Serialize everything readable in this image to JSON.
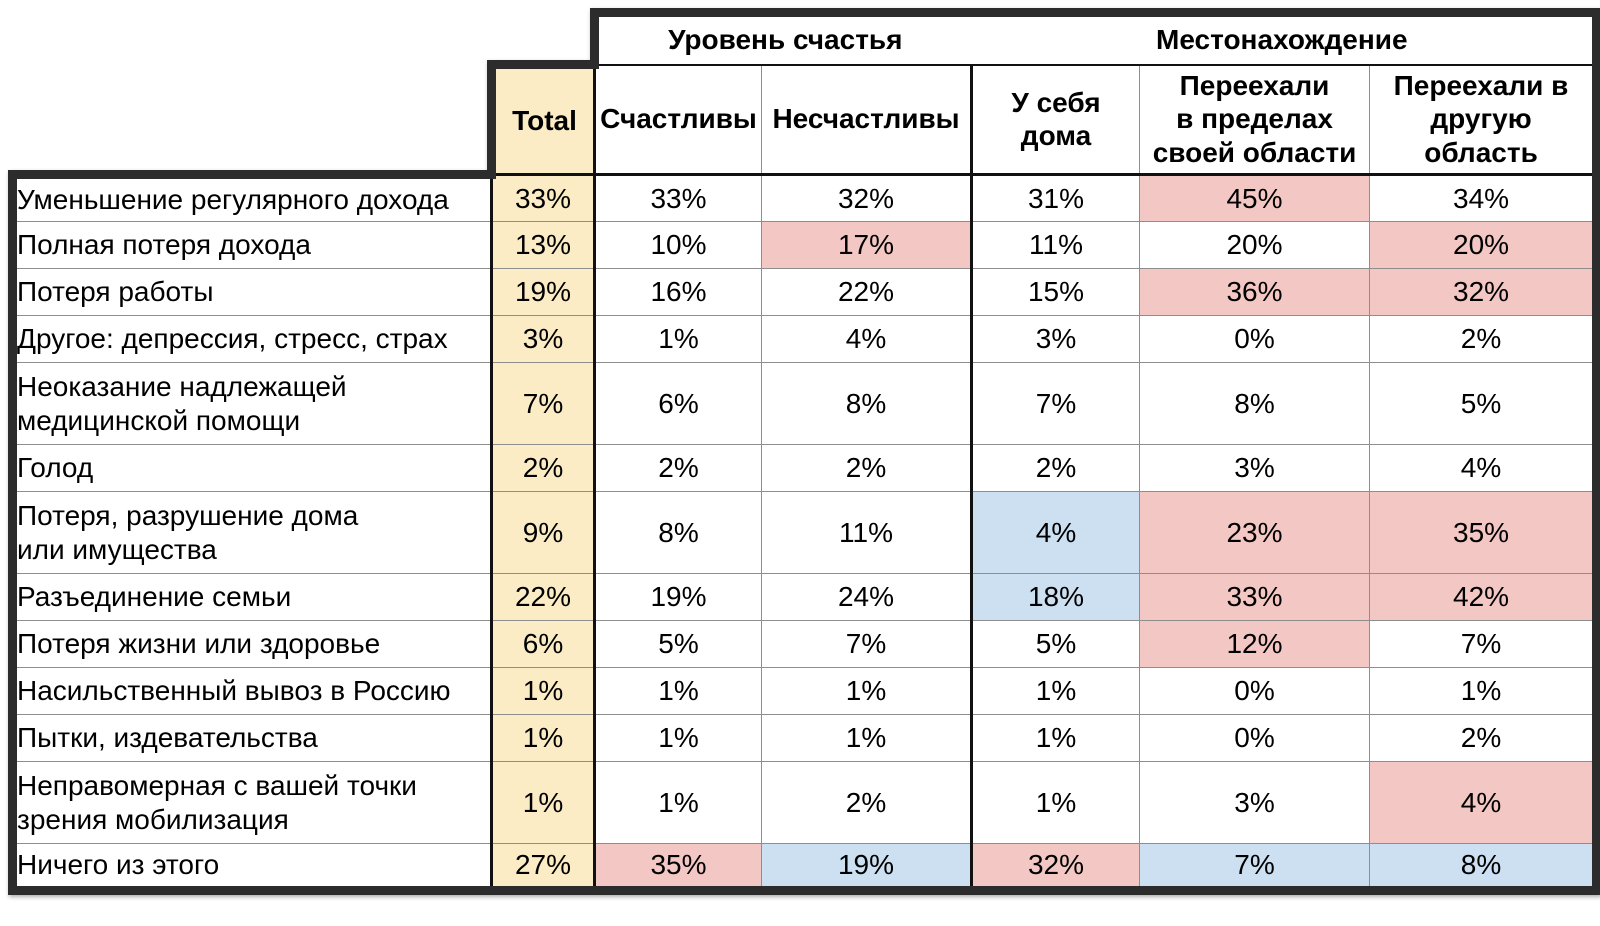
{
  "header": {
    "group_happiness": "Уровень счастья",
    "group_location": "Местонахождение",
    "col_total": "Total",
    "col_happy": "Счастливы",
    "col_unhappy": "Несчастливы",
    "col_home": "У себя\nдома",
    "col_moved_within": "Переехали\nв пределах\nсвоей области",
    "col_moved_other": "Переехали в\nдругую область"
  },
  "colors": {
    "total_column_bg": "#FBECC5",
    "highlight_pink": "#F3C7C4",
    "highlight_blue": "#CDE0F2",
    "border_dark": "#2C2C2C",
    "grid_minor": "#8E8E8E",
    "grid_major": "#111111"
  },
  "rows": [
    {
      "label": "Уменьшение регулярного дохода",
      "total": "33%",
      "values": [
        {
          "v": "33%",
          "hl": null
        },
        {
          "v": "32%",
          "hl": null
        },
        {
          "v": "31%",
          "hl": null
        },
        {
          "v": "45%",
          "hl": "pink"
        },
        {
          "v": "34%",
          "hl": null
        }
      ]
    },
    {
      "label": "Полная потеря дохода",
      "total": "13%",
      "values": [
        {
          "v": "10%",
          "hl": null
        },
        {
          "v": "17%",
          "hl": "pink"
        },
        {
          "v": "11%",
          "hl": null
        },
        {
          "v": "20%",
          "hl": null
        },
        {
          "v": "20%",
          "hl": "pink"
        }
      ]
    },
    {
      "label": "Потеря работы",
      "total": "19%",
      "values": [
        {
          "v": "16%",
          "hl": null
        },
        {
          "v": "22%",
          "hl": null
        },
        {
          "v": "15%",
          "hl": null
        },
        {
          "v": "36%",
          "hl": "pink"
        },
        {
          "v": "32%",
          "hl": "pink"
        }
      ]
    },
    {
      "label": "Другое: депрессия, стресс, страх",
      "total": "3%",
      "values": [
        {
          "v": "1%",
          "hl": null
        },
        {
          "v": "4%",
          "hl": null
        },
        {
          "v": "3%",
          "hl": null
        },
        {
          "v": "0%",
          "hl": null
        },
        {
          "v": "2%",
          "hl": null
        }
      ]
    },
    {
      "label": "Неоказание надлежащей\nмедицинской помощи",
      "total": "7%",
      "values": [
        {
          "v": "6%",
          "hl": null
        },
        {
          "v": "8%",
          "hl": null
        },
        {
          "v": "7%",
          "hl": null
        },
        {
          "v": "8%",
          "hl": null
        },
        {
          "v": "5%",
          "hl": null
        }
      ]
    },
    {
      "label": "Голод",
      "total": "2%",
      "values": [
        {
          "v": "2%",
          "hl": null
        },
        {
          "v": "2%",
          "hl": null
        },
        {
          "v": "2%",
          "hl": null
        },
        {
          "v": "3%",
          "hl": null
        },
        {
          "v": "4%",
          "hl": null
        }
      ]
    },
    {
      "label": "Потеря, разрушение дома\nили имущества",
      "total": "9%",
      "values": [
        {
          "v": "8%",
          "hl": null
        },
        {
          "v": "11%",
          "hl": null
        },
        {
          "v": "4%",
          "hl": "blue"
        },
        {
          "v": "23%",
          "hl": "pink"
        },
        {
          "v": "35%",
          "hl": "pink"
        }
      ]
    },
    {
      "label": "Разъединение семьи",
      "total": "22%",
      "values": [
        {
          "v": "19%",
          "hl": null
        },
        {
          "v": "24%",
          "hl": null
        },
        {
          "v": "18%",
          "hl": "blue"
        },
        {
          "v": "33%",
          "hl": "pink"
        },
        {
          "v": "42%",
          "hl": "pink"
        }
      ]
    },
    {
      "label": "Потеря жизни или здоровье",
      "total": "6%",
      "values": [
        {
          "v": "5%",
          "hl": null
        },
        {
          "v": "7%",
          "hl": null
        },
        {
          "v": "5%",
          "hl": null
        },
        {
          "v": "12%",
          "hl": "pink"
        },
        {
          "v": "7%",
          "hl": null
        }
      ]
    },
    {
      "label": "Насильственный вывоз в Россию",
      "total": "1%",
      "values": [
        {
          "v": "1%",
          "hl": null
        },
        {
          "v": "1%",
          "hl": null
        },
        {
          "v": "1%",
          "hl": null
        },
        {
          "v": "0%",
          "hl": null
        },
        {
          "v": "1%",
          "hl": null
        }
      ]
    },
    {
      "label": "Пытки, издевательства",
      "total": "1%",
      "values": [
        {
          "v": "1%",
          "hl": null
        },
        {
          "v": "1%",
          "hl": null
        },
        {
          "v": "1%",
          "hl": null
        },
        {
          "v": "0%",
          "hl": null
        },
        {
          "v": "2%",
          "hl": null
        }
      ]
    },
    {
      "label": "Неправомерная с вашей точки\nзрения мобилизация",
      "total": "1%",
      "values": [
        {
          "v": "1%",
          "hl": null
        },
        {
          "v": "2%",
          "hl": null
        },
        {
          "v": "1%",
          "hl": null
        },
        {
          "v": "3%",
          "hl": null
        },
        {
          "v": "4%",
          "hl": "pink"
        }
      ]
    },
    {
      "label": "Ничего из этого",
      "total": "27%",
      "values": [
        {
          "v": "35%",
          "hl": "pink"
        },
        {
          "v": "19%",
          "hl": "blue"
        },
        {
          "v": "32%",
          "hl": "pink"
        },
        {
          "v": "7%",
          "hl": "blue"
        },
        {
          "v": "8%",
          "hl": "blue"
        }
      ]
    }
  ],
  "chart_data": {
    "type": "table",
    "title": "",
    "units": "%",
    "categories": [
      "Уменьшение регулярного дохода",
      "Полная потеря дохода",
      "Потеря работы",
      "Другое: депрессия, стресс, страх",
      "Неоказание надлежащей медицинской помощи",
      "Голод",
      "Потеря, разрушение дома или имущества",
      "Разъединение семьи",
      "Потеря жизни или здоровье",
      "Насильственный вывоз в Россию",
      "Пытки, издевательства",
      "Неправомерная с вашей точки зрения мобилизация",
      "Ничего из этого"
    ],
    "column_groups": [
      {
        "label": "Уровень счастья",
        "columns": [
          "Счастливы",
          "Несчастливы"
        ]
      },
      {
        "label": "Местонахождение",
        "columns": [
          "У себя дома",
          "Переехали в пределах своей области",
          "Переехали в другую область"
        ]
      }
    ],
    "series": [
      {
        "name": "Total",
        "values": [
          33,
          13,
          19,
          3,
          7,
          2,
          9,
          22,
          6,
          1,
          1,
          1,
          27
        ]
      },
      {
        "name": "Счастливы",
        "values": [
          33,
          10,
          16,
          1,
          6,
          2,
          8,
          19,
          5,
          1,
          1,
          1,
          35
        ]
      },
      {
        "name": "Несчастливы",
        "values": [
          32,
          17,
          22,
          4,
          8,
          2,
          11,
          24,
          7,
          1,
          1,
          2,
          19
        ]
      },
      {
        "name": "У себя дома",
        "values": [
          31,
          11,
          15,
          3,
          7,
          2,
          4,
          18,
          5,
          1,
          1,
          1,
          32
        ]
      },
      {
        "name": "Переехали в пределах своей области",
        "values": [
          45,
          20,
          36,
          0,
          8,
          3,
          23,
          33,
          12,
          0,
          0,
          3,
          7
        ]
      },
      {
        "name": "Переехали в другую область",
        "values": [
          34,
          20,
          32,
          2,
          5,
          4,
          35,
          42,
          7,
          1,
          2,
          4,
          8
        ]
      }
    ]
  }
}
